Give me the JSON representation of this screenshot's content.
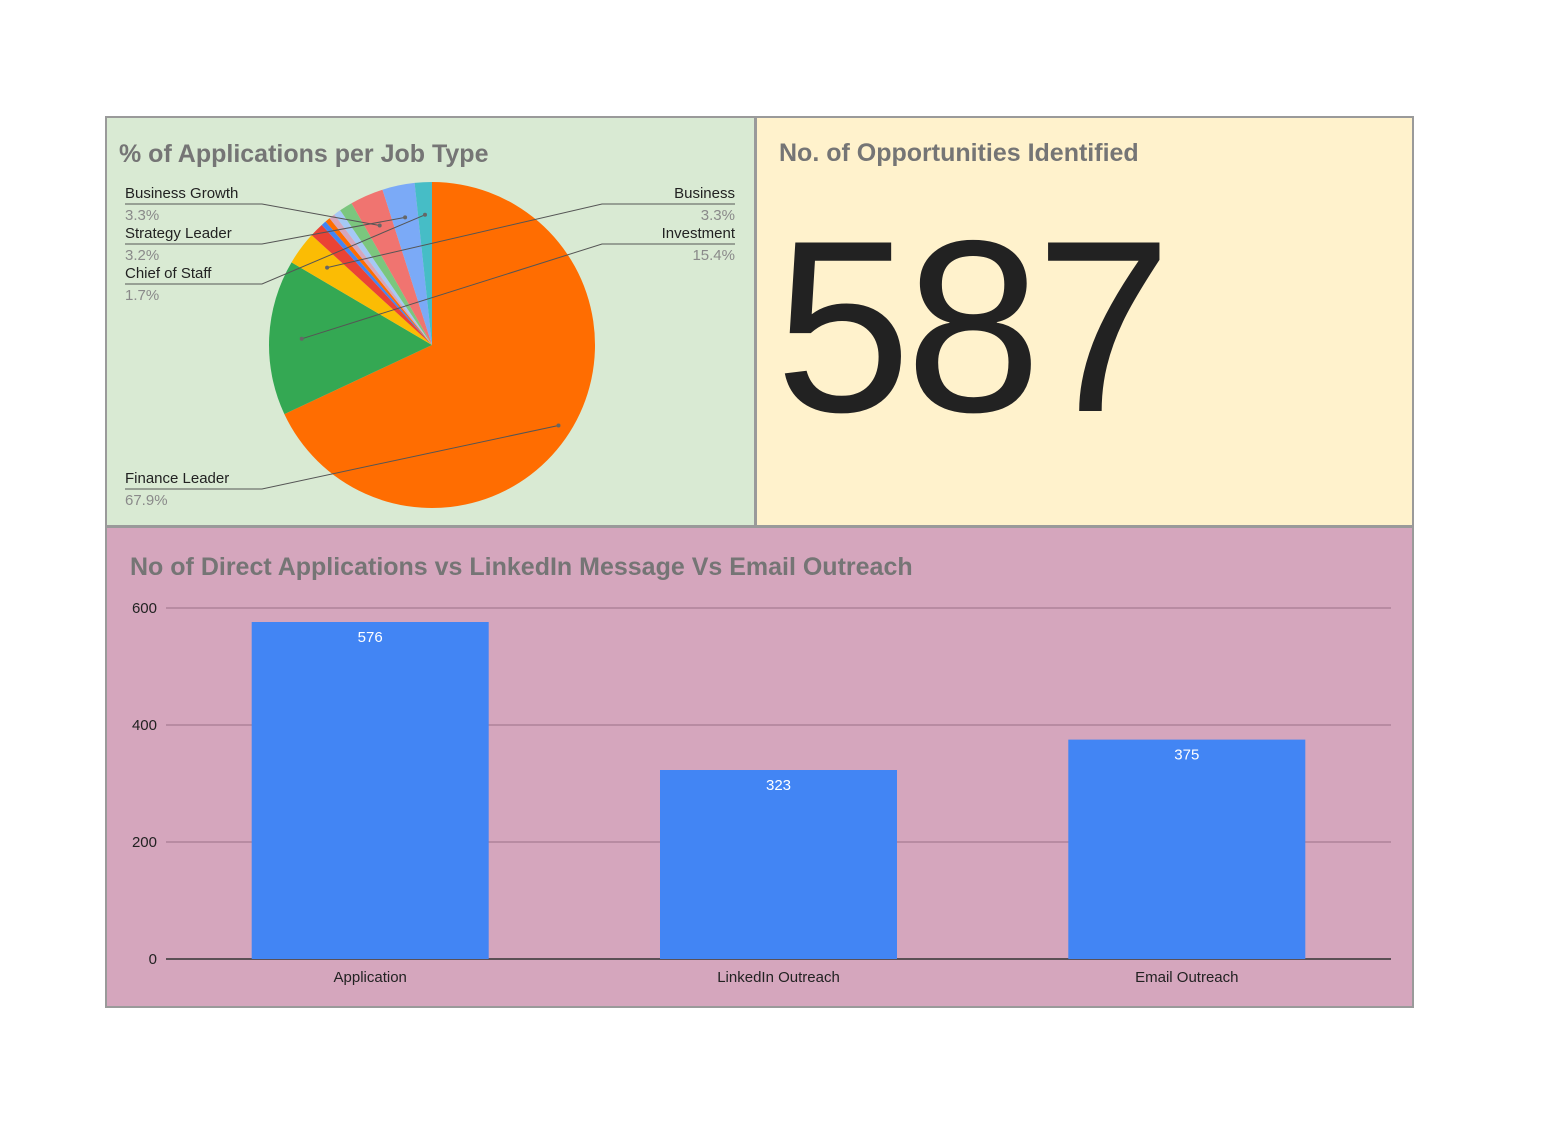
{
  "colors": {
    "pie_panel_bg": "#d9ead3",
    "kpi_panel_bg": "#fff2cc",
    "bar_panel_bg": "#d5a6bd",
    "bar_fill": "#4285f4"
  },
  "kpi": {
    "title": "No. of Opportunities Identified",
    "value": "587"
  },
  "chart_data": [
    {
      "type": "pie",
      "title": "% of Applications per Job Type",
      "slices": [
        {
          "name": "Finance Leader",
          "value": 67.9,
          "label": "67.9%",
          "color": "#ff6d01"
        },
        {
          "name": "Investment",
          "value": 15.4,
          "label": "15.4%",
          "color": "#34a853"
        },
        {
          "name": "Business",
          "value": 3.3,
          "label": "3.3%",
          "color": "#fbbc04"
        },
        {
          "name": "",
          "value": 1.4,
          "color": "#ea4335"
        },
        {
          "name": "",
          "value": 0.5,
          "color": "#4285f4"
        },
        {
          "name": "",
          "value": 0.5,
          "color": "#ff6d01"
        },
        {
          "name": "",
          "value": 0.6,
          "color": "#d5a6bd"
        },
        {
          "name": "",
          "value": 0.7,
          "color": "#a5c8f5"
        },
        {
          "name": "",
          "value": 1.3,
          "color": "#7bc67e"
        },
        {
          "name": "Business Growth",
          "value": 3.3,
          "label": "3.3%",
          "color": "#f07470"
        },
        {
          "name": "Strategy Leader",
          "value": 3.2,
          "label": "3.2%",
          "color": "#7baaf7"
        },
        {
          "name": "Chief of Staff",
          "value": 1.7,
          "label": "1.7%",
          "color": "#46bdc6"
        }
      ]
    },
    {
      "type": "bar",
      "title": "No of Direct Applications vs LinkedIn Message Vs Email Outreach",
      "categories": [
        "Application",
        "LinkedIn Outreach",
        "Email Outreach"
      ],
      "values": [
        576,
        323,
        375
      ],
      "ylim": [
        0,
        600
      ],
      "yticks": [
        0,
        200,
        400,
        600
      ],
      "xlabel": "",
      "ylabel": "",
      "grid": true
    }
  ]
}
